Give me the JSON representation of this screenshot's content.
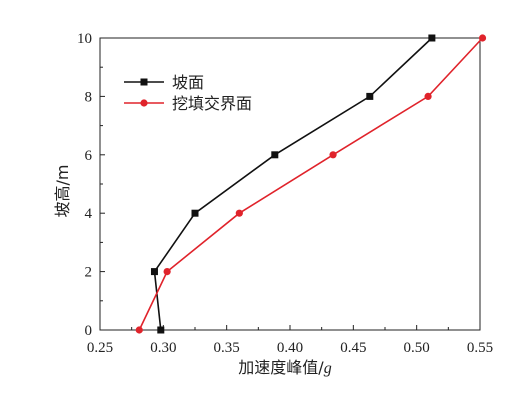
{
  "chart_data": {
    "type": "line",
    "title": "",
    "xlabel": "加速度峰值/",
    "xlabel_unit": "g",
    "ylabel": "坡高/m",
    "xlim": [
      0.25,
      0.55
    ],
    "ylim": [
      0,
      10
    ],
    "xticks": [
      "0.25",
      "0.30",
      "0.35",
      "0.40",
      "0.45",
      "0.50",
      "0.55"
    ],
    "yticks": [
      "0",
      "2",
      "4",
      "6",
      "8",
      "10"
    ],
    "grid": false,
    "legend_position": "top-left",
    "series": [
      {
        "name": "坡面",
        "color": "#111111",
        "marker": "square",
        "x": [
          0.298,
          0.293,
          0.325,
          0.388,
          0.463,
          0.512
        ],
        "y": [
          0,
          2,
          4,
          6,
          8,
          10
        ]
      },
      {
        "name": "挖填交界面",
        "color": "#e0232b",
        "marker": "circle",
        "x": [
          0.281,
          0.303,
          0.36,
          0.434,
          0.509,
          0.552
        ],
        "y": [
          0,
          2,
          4,
          6,
          8,
          10
        ]
      }
    ]
  }
}
